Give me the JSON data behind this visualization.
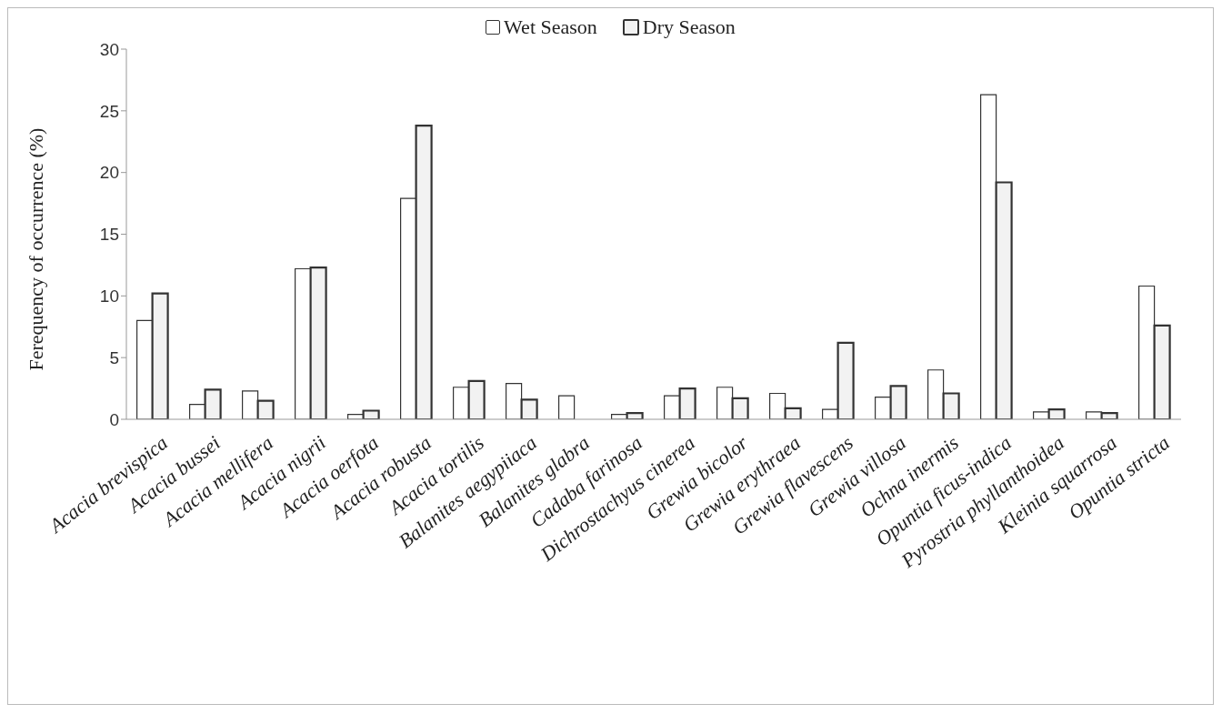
{
  "chart_data": {
    "type": "bar",
    "ylabel": "Ferequency of occurrence (%)",
    "categories": [
      "Acacia brevispica",
      "Acacia bussei",
      "Acacia mellifera",
      "Acacia nigrii",
      "Acacia oerfota",
      "Acacia robusta",
      "Acacia tortilis",
      "Balanites aegypiiaca",
      "Balanites glabra",
      "Cadaba farinosa",
      "Dichrostachyus cinerea",
      "Grewia bicolor",
      "Grewia erythraea",
      "Grewia flavescens",
      "Grewia villosa",
      "Ochna inermis",
      "Opuntia ficus-indica",
      "Pyrostria phyllanthoidea",
      "Kleinia squarrosa",
      "Opuntia stricta"
    ],
    "series": [
      {
        "name": "Wet Season",
        "color": "#ffffff",
        "values": [
          8,
          1.2,
          2.3,
          12.2,
          0.4,
          17.9,
          2.6,
          2.9,
          1.9,
          0.4,
          1.9,
          2.6,
          2.1,
          0.8,
          1.8,
          4.0,
          26.3,
          0.6,
          0.6,
          10.8
        ]
      },
      {
        "name": "Dry Season",
        "color": "#f2f2f2",
        "values": [
          10.2,
          2.4,
          1.5,
          12.3,
          0.7,
          23.8,
          3.1,
          1.6,
          0,
          0.5,
          2.5,
          1.7,
          0.9,
          6.2,
          2.7,
          2.1,
          19.2,
          0.8,
          0.5,
          7.6
        ]
      }
    ],
    "ylim": [
      0,
      30
    ],
    "yticks": [
      0,
      5,
      10,
      15,
      20,
      25,
      30
    ],
    "legend": "top"
  }
}
